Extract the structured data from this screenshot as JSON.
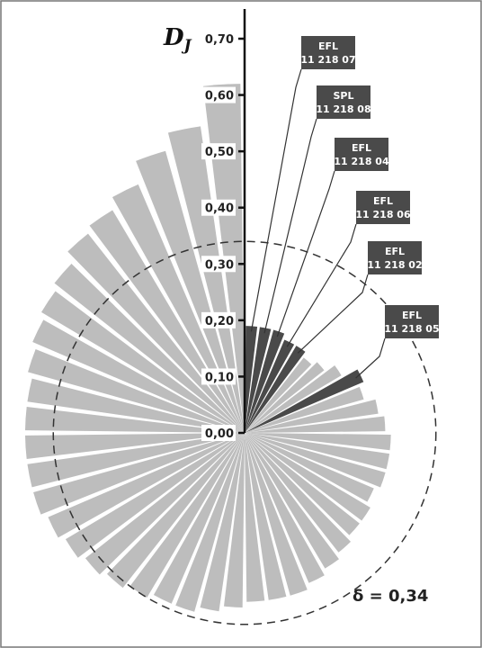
{
  "chart_data": {
    "type": "polar-bar",
    "ylabel": {
      "main": "D",
      "sub": "J"
    },
    "ylim": [
      0,
      0.7
    ],
    "yticks": [
      {
        "value": 0,
        "label": "0,00"
      },
      {
        "value": 0.1,
        "label": "0,10"
      },
      {
        "value": 0.2,
        "label": "0,20"
      },
      {
        "value": 0.3,
        "label": "0,30"
      },
      {
        "value": 0.4,
        "label": "0,40"
      },
      {
        "value": 0.5,
        "label": "0,50"
      },
      {
        "value": 0.6,
        "label": "0,60"
      },
      {
        "value": 0.7,
        "label": "0,70"
      }
    ],
    "values": [
      0.19,
      0.19,
      0.19,
      0.18,
      0.18,
      0.17,
      0.18,
      0.2,
      0.23,
      0.22,
      0.24,
      0.25,
      0.26,
      0.26,
      0.26,
      0.25,
      0.26,
      0.26,
      0.27,
      0.28,
      0.29,
      0.3,
      0.3,
      0.3,
      0.31,
      0.32,
      0.33,
      0.33,
      0.34,
      0.35,
      0.36,
      0.37,
      0.38,
      0.39,
      0.39,
      0.39,
      0.39,
      0.39,
      0.4,
      0.41,
      0.42,
      0.43,
      0.45,
      0.46,
      0.48,
      0.52,
      0.55,
      0.62
    ],
    "color": "#bdbdbd",
    "highlight_color": "#4a4a4a",
    "highlighted": [
      0,
      1,
      2,
      3,
      4,
      8
    ],
    "annotations": [
      {
        "lines": [
          "EFL",
          "11 218 07"
        ]
      },
      {
        "lines": [
          "SPL",
          "11 218 08"
        ]
      },
      {
        "lines": [
          "EFL",
          "11 218 04"
        ]
      },
      {
        "lines": [
          "EFL",
          "11 218 06"
        ]
      },
      {
        "lines": [
          "EFL",
          "11 218 02"
        ]
      },
      {
        "lines": [
          "EFL",
          "11 218 05"
        ]
      }
    ],
    "threshold": {
      "value": 0.34,
      "label": "δ = 0,34"
    }
  }
}
